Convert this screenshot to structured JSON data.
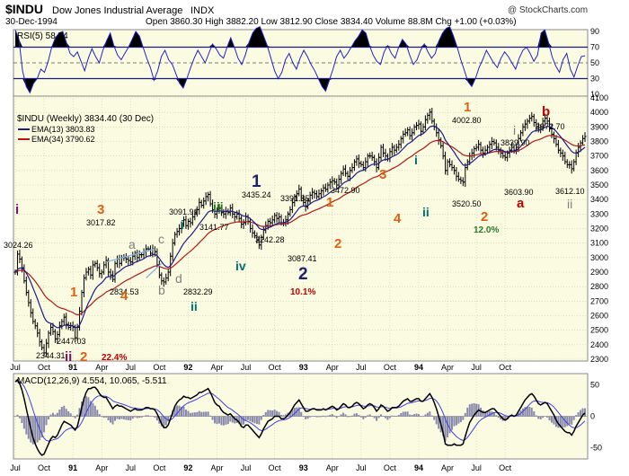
{
  "header": {
    "symbol": "$INDU",
    "name": "Dow Jones Industrial Average",
    "exchange": "INDX",
    "date": "30-Dec-1994",
    "ohlc": "Open 3860.30   High 3882.20   Low 3812.90   Close 3834.40   Volume 88.8M   Chg +1.00 (+0.03%)",
    "watermark": "@ StockCharts.com"
  },
  "colors": {
    "panel_bg": "#fbfbe2",
    "grid": "#c8c8b4",
    "price": "#000000",
    "ema13": "#1c1c8c",
    "ema34": "#b01818",
    "rsi": "#2222cc",
    "macd": "#000000",
    "signal": "#4040e0",
    "histogram": "#8888aa",
    "orange": "#e06010",
    "red": "#c00000",
    "navy": "#202070",
    "teal": "#006f6f",
    "green": "#2a7a2a",
    "gray": "#808080",
    "purple": "#7a1060"
  },
  "chart_data": [
    {
      "type": "line",
      "panel": "rsi",
      "legend": "RSI(5) 58.74",
      "ylim": [
        10,
        90
      ],
      "y_ticks": [
        90,
        70,
        50,
        30,
        10
      ],
      "reference_lines": [
        30,
        70
      ],
      "series": [
        {
          "name": "RSI(5)",
          "values": [
            92,
            80,
            40,
            20,
            12,
            24,
            30,
            42,
            38,
            52,
            70,
            82,
            88,
            90,
            76,
            62,
            58,
            64,
            52,
            40,
            56,
            68,
            58,
            50,
            66,
            78,
            88,
            72,
            60,
            54,
            62,
            70,
            80,
            90,
            84,
            70,
            56,
            44,
            28,
            40,
            58,
            66,
            54,
            48,
            36,
            24,
            18,
            30,
            44,
            56,
            66,
            58,
            50,
            62,
            74,
            68,
            60,
            56,
            70,
            82,
            70,
            56,
            48,
            60,
            76,
            88,
            94,
            96,
            84,
            72,
            56,
            40,
            30,
            38,
            54,
            62,
            50,
            42,
            56,
            66,
            58,
            48,
            40,
            30,
            20,
            14,
            28,
            42,
            58,
            66,
            56,
            62,
            70,
            78,
            84,
            92,
            88,
            72,
            60,
            52,
            48,
            64,
            72,
            62,
            56,
            70,
            80,
            74,
            60,
            48,
            54,
            66,
            74,
            64,
            56,
            62,
            78,
            88,
            94,
            96,
            84,
            70,
            54,
            40,
            26,
            20,
            30,
            44,
            54,
            66,
            58,
            50,
            44,
            56,
            64,
            58,
            50,
            42,
            56,
            66,
            70,
            62,
            52,
            60,
            88,
            92,
            76,
            58,
            46,
            38,
            54,
            62,
            42,
            32,
            46,
            58,
            59
          ]
        }
      ]
    },
    {
      "type": "line",
      "panel": "price",
      "title": "$INDU (Weekly) 3834.40 (30 Dec)",
      "ylim": [
        2300,
        4100
      ],
      "y_ticks": [
        4100,
        4000,
        3900,
        3800,
        3700,
        3600,
        3500,
        3400,
        3300,
        3200,
        3100,
        3000,
        2900,
        2800,
        2700,
        2600,
        2500,
        2400,
        2300
      ],
      "x_ticks": [
        "Jul",
        "Oct",
        "91",
        "Apr",
        "Jul",
        "Oct",
        "92",
        "Apr",
        "Jul",
        "Oct",
        "93",
        "Apr",
        "Jul",
        "Oct",
        "94",
        "Apr",
        "Jul",
        "Oct"
      ],
      "x_tick_weeks": [
        0,
        13,
        26,
        39,
        52,
        65,
        78,
        91,
        104,
        117,
        130,
        143,
        156,
        169,
        182,
        195,
        208,
        221
      ],
      "legend": [
        "EMA(13) 3803.83",
        "EMA(34) 3790.62"
      ],
      "series": [
        {
          "name": "$INDU",
          "values": [
            2900,
            3024,
            2990,
            2930,
            2840,
            2760,
            2690,
            2620,
            2560,
            2530,
            2480,
            2420,
            2380,
            2344,
            2410,
            2480,
            2520,
            2490,
            2440,
            2470,
            2530,
            2560,
            2590,
            2540,
            2520,
            2530,
            2520,
            2447,
            2520,
            2630,
            2760,
            2860,
            2900,
            2920,
            2880,
            2950,
            2960,
            2930,
            2890,
            2900,
            2950,
            2980,
            2900,
            2880,
            2850,
            2960,
            2990,
            2960,
            3000,
            3000,
            2990,
            2980,
            2970,
            3010,
            3030,
            3000,
            3020,
            3020,
            3040,
            3060,
            3060,
            3030,
            3060,
            3040,
            2950,
            2880,
            2840,
            2832,
            2860,
            2900,
            3010,
            3100,
            3160,
            3180,
            3200,
            3230,
            3260,
            3220,
            3250,
            3240,
            3280,
            3310,
            3330,
            3380,
            3360,
            3390,
            3420,
            3435,
            3370,
            3330,
            3300,
            3320,
            3340,
            3310,
            3300,
            3320,
            3310,
            3342,
            3300,
            3280,
            3300,
            3270,
            3230,
            3240,
            3280,
            3250,
            3200,
            3170,
            3150,
            3120,
            3087,
            3140,
            3190,
            3220,
            3250,
            3240,
            3260,
            3290,
            3270,
            3280,
            3240,
            3242,
            3260,
            3300,
            3330,
            3380,
            3420,
            3440,
            3472,
            3410,
            3380,
            3350,
            3390,
            3430,
            3450,
            3440,
            3420,
            3440,
            3460,
            3480,
            3470,
            3500,
            3520,
            3530,
            3520,
            3500,
            3540,
            3580,
            3610,
            3580,
            3560,
            3600,
            3620,
            3660,
            3680,
            3650,
            3640,
            3620,
            3660,
            3700,
            3700,
            3690,
            3660,
            3620,
            3690,
            3760,
            3720,
            3700,
            3680,
            3730,
            3760,
            3740,
            3760,
            3780,
            3820,
            3850,
            3860,
            3880,
            3840,
            3860,
            3900,
            3910,
            3920,
            3870,
            3900,
            3950,
            3980,
            4002,
            3940,
            3900,
            3860,
            3810,
            3770,
            3700,
            3600,
            3660,
            3640,
            3620,
            3600,
            3560,
            3540,
            3530,
            3520,
            3620,
            3660,
            3700,
            3720,
            3750,
            3760,
            3780,
            3740,
            3720,
            3740,
            3760,
            3780,
            3800,
            3790,
            3760,
            3740,
            3720,
            3700,
            3690,
            3720,
            3740,
            3760,
            3740,
            3760,
            3820,
            3860,
            3900,
            3920,
            3940,
            3960,
            3972,
            3930,
            3900,
            3880,
            3900,
            3940,
            3960,
            3940,
            3890,
            3850,
            3820,
            3780,
            3740,
            3720,
            3700,
            3660,
            3640,
            3640,
            3612,
            3660,
            3720,
            3760,
            3790,
            3820,
            3834
          ]
        },
        {
          "name": "EMA(13)",
          "values": []
        },
        {
          "name": "EMA(34)",
          "values": []
        }
      ],
      "annotations": [
        {
          "text": "3024.26",
          "kind": "value"
        },
        {
          "text": "2344.31",
          "kind": "value"
        },
        {
          "text": "2447.03",
          "kind": "value"
        },
        {
          "text": "3017.82",
          "kind": "value"
        },
        {
          "text": "2834.53",
          "kind": "value"
        },
        {
          "text": "3091.91",
          "kind": "value"
        },
        {
          "text": "2832.29",
          "kind": "value"
        },
        {
          "text": "3435.24",
          "kind": "value"
        },
        {
          "text": "3391.35",
          "kind": "value"
        },
        {
          "text": "3141.77",
          "kind": "value"
        },
        {
          "text": "3242.28",
          "kind": "value"
        },
        {
          "text": "3087.41",
          "kind": "value"
        },
        {
          "text": "3472.90",
          "kind": "value"
        },
        {
          "text": "4002.80",
          "kind": "value"
        },
        {
          "text": "3839.90",
          "kind": "value"
        },
        {
          "text": "3972.70",
          "kind": "value"
        },
        {
          "text": "3603.90",
          "kind": "value"
        },
        {
          "text": "3520.50",
          "kind": "value"
        },
        {
          "text": "3612.10",
          "kind": "value"
        },
        {
          "text": "i",
          "kind": "wave",
          "color": "purple"
        },
        {
          "text": "ii",
          "kind": "wave",
          "color": "purple"
        },
        {
          "text": "2",
          "kind": "wave",
          "color": "orange"
        },
        {
          "text": "22.4%",
          "kind": "pct",
          "color": "red"
        },
        {
          "text": "1",
          "kind": "wave",
          "color": "orange"
        },
        {
          "text": "3",
          "kind": "wave",
          "color": "orange"
        },
        {
          "text": "4",
          "kind": "wave",
          "color": "orange"
        },
        {
          "text": "a",
          "kind": "wave",
          "color": "gray"
        },
        {
          "text": "b",
          "kind": "wave",
          "color": "gray"
        },
        {
          "text": "c",
          "kind": "wave",
          "color": "gray"
        },
        {
          "text": "d",
          "kind": "wave",
          "color": "gray"
        },
        {
          "text": "i",
          "kind": "wave",
          "color": "teal"
        },
        {
          "text": "ii",
          "kind": "wave",
          "color": "teal"
        },
        {
          "text": "iii",
          "kind": "wave",
          "color": "green"
        },
        {
          "text": "iv",
          "kind": "wave",
          "color": "teal"
        },
        {
          "text": "1",
          "kind": "wave",
          "color": "navy"
        },
        {
          "text": "2",
          "kind": "wave",
          "color": "navy"
        },
        {
          "text": "10.1%",
          "kind": "pct",
          "color": "red"
        },
        {
          "text": "1",
          "kind": "wave",
          "color": "orange"
        },
        {
          "text": "2",
          "kind": "wave",
          "color": "orange"
        },
        {
          "text": "3",
          "kind": "wave",
          "color": "orange"
        },
        {
          "text": "4",
          "kind": "wave",
          "color": "orange"
        },
        {
          "text": "i",
          "kind": "wave",
          "color": "teal"
        },
        {
          "text": "ii",
          "kind": "wave",
          "color": "teal"
        },
        {
          "text": "1",
          "kind": "wave",
          "color": "orange"
        },
        {
          "text": "2",
          "kind": "wave",
          "color": "orange"
        },
        {
          "text": "12.0%",
          "kind": "pct",
          "color": "green"
        },
        {
          "text": "i",
          "kind": "wave",
          "color": "gray"
        },
        {
          "text": "a",
          "kind": "wave",
          "color": "red"
        },
        {
          "text": "b",
          "kind": "wave",
          "color": "red"
        },
        {
          "text": "ii",
          "kind": "wave",
          "color": "gray"
        }
      ]
    },
    {
      "type": "line",
      "panel": "macd",
      "legend": "MACD(12,26,9) 4.554, 10.065, -5.511",
      "ylim": [
        -65,
        65
      ],
      "y_ticks": [
        50,
        0,
        -50
      ],
      "series": [
        {
          "name": "MACD(12,26,9)",
          "values": [
            55,
            58,
            52,
            42,
            28,
            12,
            -4,
            -20,
            -34,
            -44,
            -52,
            -58,
            -62,
            -60,
            -52,
            -44,
            -36,
            -32,
            -34,
            -30,
            -22,
            -14,
            -8,
            -10,
            -12,
            -14,
            -18,
            -22,
            -16,
            -2,
            14,
            28,
            38,
            44,
            44,
            46,
            46,
            42,
            36,
            32,
            30,
            30,
            24,
            18,
            12,
            16,
            18,
            16,
            16,
            14,
            12,
            10,
            8,
            10,
            12,
            10,
            10,
            10,
            12,
            14,
            14,
            12,
            12,
            10,
            4,
            -4,
            -12,
            -18,
            -18,
            -14,
            -4,
            6,
            16,
            22,
            26,
            28,
            32,
            30,
            30,
            28,
            30,
            32,
            34,
            38,
            38,
            40,
            42,
            44,
            38,
            30,
            22,
            18,
            16,
            10,
            6,
            4,
            2,
            4,
            0,
            -4,
            -6,
            -10,
            -16,
            -18,
            -14,
            -14,
            -18,
            -22,
            -26,
            -30,
            -34,
            -28,
            -20,
            -14,
            -8,
            -6,
            -4,
            0,
            0,
            0,
            -4,
            -4,
            -2,
            2,
            6,
            12,
            18,
            22,
            26,
            20,
            14,
            8,
            8,
            10,
            12,
            12,
            10,
            10,
            10,
            12,
            10,
            12,
            14,
            16,
            14,
            10,
            12,
            16,
            20,
            18,
            14,
            14,
            16,
            20,
            22,
            20,
            16,
            12,
            14,
            18,
            20,
            18,
            14,
            8,
            12,
            18,
            16,
            12,
            8,
            10,
            14,
            14,
            14,
            16,
            20,
            24,
            26,
            28,
            24,
            24,
            26,
            28,
            28,
            24,
            24,
            28,
            32,
            36,
            30,
            22,
            12,
            0,
            -12,
            -26,
            -44,
            -46,
            -46,
            -46,
            -44,
            -46,
            -46,
            -46,
            -44,
            -32,
            -20,
            -10,
            -4,
            2,
            6,
            10,
            8,
            6,
            6,
            8,
            10,
            12,
            12,
            8,
            4,
            0,
            -4,
            -6,
            -4,
            0,
            2,
            0,
            2,
            8,
            14,
            20,
            26,
            30,
            34,
            36,
            32,
            26,
            20,
            18,
            20,
            22,
            20,
            14,
            8,
            2,
            -6,
            -12,
            -16,
            -20,
            -24,
            -26,
            -26,
            -30,
            -24,
            -16,
            -10,
            -4,
            2,
            5
          ]
        },
        {
          "name": "Signal",
          "values": []
        },
        {
          "name": "Histogram",
          "values": []
        }
      ]
    }
  ]
}
